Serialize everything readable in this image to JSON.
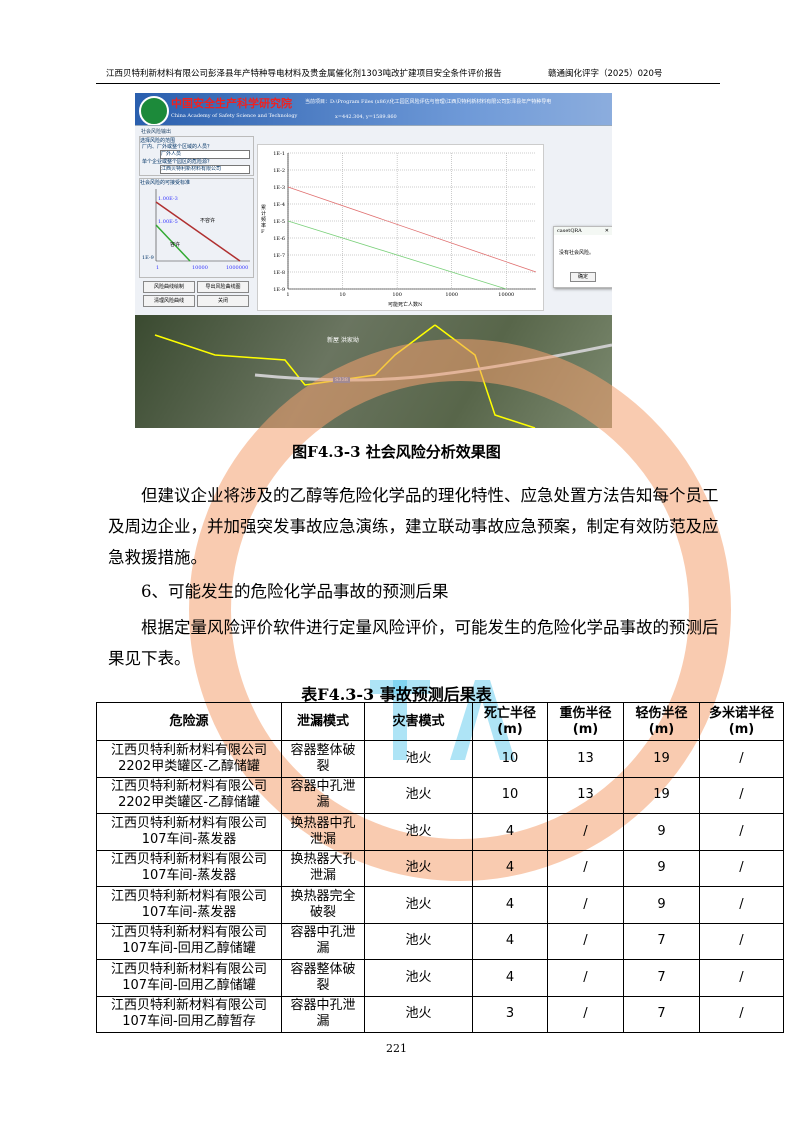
{
  "header": {
    "left": "江西贝特利新材料有限公司彭泽县年产特种导电材料及贵金属催化剂1303吨改扩建项目安全条件评价报告",
    "right": "赣通闽化评字（2025）020号"
  },
  "screenshot": {
    "banner_title": "中国安全生产科学研究院",
    "banner_subtitle": "China Academy of Safety Science and Technology",
    "path": "当前项目：D:\\Program Files (x86)\\化工园区风险评估与管理\\江西贝特利新材料有限公司彭泽县年产特种导电",
    "coords": "x=442.304, y=1589.860",
    "panel_title": "社会风险输出",
    "group1": "选择风险的范围",
    "field1_label": "厂内、厂外或整个区域的人员？",
    "field1_value": "厂外人员",
    "field2_label": "单个企业或整个园区的危险源？",
    "field2_value": "江西贝特利新材料有限公司",
    "group2": "社会风险的可接受标准",
    "label_upper": "1.00E-3",
    "label_lower": "1.00E-5",
    "label_unacceptable": "不容许",
    "label_acceptable": "容许",
    "axis_min": "1E-9",
    "axis_x1": "1",
    "axis_x2": "10000",
    "axis_x3": "1000000",
    "buttons": [
      "风险曲线绘制",
      "导出风险曲线图",
      "清理风险曲线",
      "关闭"
    ],
    "chart": {
      "y_label": "累计频率F",
      "x_label": "可能死亡人数N",
      "y_ticks": [
        "1E-1",
        "1E-2",
        "1E-3",
        "1E-4",
        "1E-5",
        "1E-6",
        "1E-7",
        "1E-8",
        "1E-9"
      ],
      "x_ticks": [
        "1",
        "10",
        "100",
        "1000",
        "10000"
      ],
      "series": [
        {
          "color": "#e07070",
          "from": [
            1,
            0.001
          ],
          "slope": -1
        },
        {
          "color": "#7ad07a",
          "from": [
            1,
            1e-05
          ],
          "slope": -1
        }
      ]
    },
    "dialog": {
      "title": "casetQRA",
      "message": "没有社会风险。",
      "ok": "确定"
    },
    "map_label": "新屋 洪家坳",
    "road_label": "S338"
  },
  "figure_caption": "图F4.3-3   社会风险分析效果图",
  "paragraphs": [
    "但建议企业将涉及的乙醇等危险化学品的理化特性、应急处置方法告知每个员工及周边企业，并加强突发事故应急演练，建立联动事故应急预案，制定有效防范及应急救援措施。",
    "6、可能发生的危险化学品事故的预测后果",
    "根据定量风险评价软件进行定量风险评价，可能发生的危险化学品事故的预测后果见下表。"
  ],
  "table_caption": "表F4.3-3   事故预测后果表",
  "table": {
    "headers": [
      "危险源",
      "泄漏模式",
      "灾害模式",
      "死亡半径(m)",
      "重伤半径(m)",
      "轻伤半径(m)",
      "多米诺半径(m)"
    ],
    "rows": [
      [
        "江西贝特利新材料有限公司2202甲类罐区-乙醇储罐",
        "容器整体破裂",
        "池火",
        "10",
        "13",
        "19",
        "/"
      ],
      [
        "江西贝特利新材料有限公司2202甲类罐区-乙醇储罐",
        "容器中孔泄漏",
        "池火",
        "10",
        "13",
        "19",
        "/"
      ],
      [
        "江西贝特利新材料有限公司107车间-蒸发器",
        "换热器中孔泄漏",
        "池火",
        "4",
        "/",
        "9",
        "/"
      ],
      [
        "江西贝特利新材料有限公司107车间-蒸发器",
        "换热器大孔泄漏",
        "池火",
        "4",
        "/",
        "9",
        "/"
      ],
      [
        "江西贝特利新材料有限公司107车间-蒸发器",
        "换热器完全破裂",
        "池火",
        "4",
        "/",
        "9",
        "/"
      ],
      [
        "江西贝特利新材料有限公司107车间-回用乙醇储罐",
        "容器中孔泄漏",
        "池火",
        "4",
        "/",
        "7",
        "/"
      ],
      [
        "江西贝特利新材料有限公司107车间-回用乙醇储罐",
        "容器整体破裂",
        "池火",
        "4",
        "/",
        "7",
        "/"
      ],
      [
        "江西贝特利新材料有限公司107车间-回用乙醇暂存",
        "容器中孔泄漏",
        "池火",
        "3",
        "/",
        "7",
        "/"
      ]
    ]
  },
  "page_number": "221",
  "watermark_colors": {
    "ring": "#f4a070",
    "letters": "#4cc4ea"
  }
}
